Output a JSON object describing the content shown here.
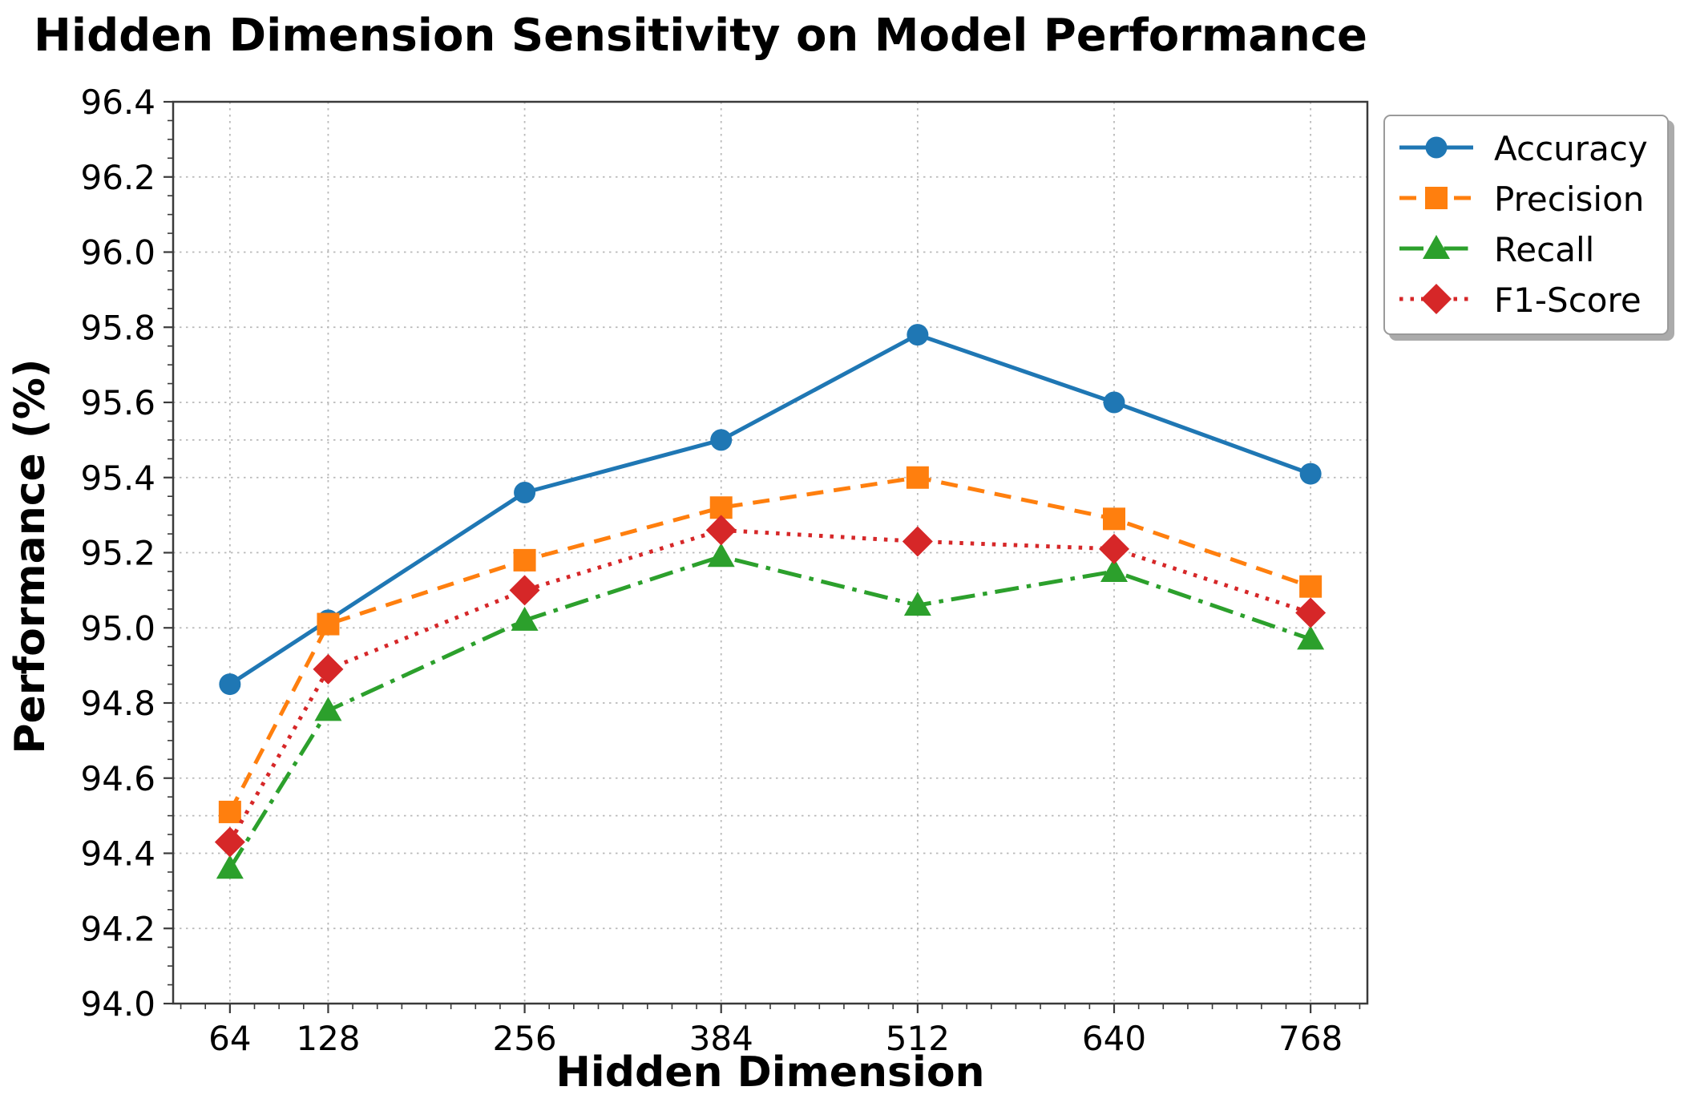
{
  "chart_data": {
    "type": "line",
    "title": "Hidden Dimension Sensitivity on Model Performance",
    "xlabel": "Hidden Dimension",
    "ylabel": "Performance (%)",
    "x": [
      64,
      128,
      256,
      384,
      512,
      640,
      768
    ],
    "series": [
      {
        "name": "Accuracy",
        "color": "#1f77b4",
        "linestyle": "solid",
        "marker": "circle",
        "values": [
          94.85,
          95.02,
          95.36,
          95.5,
          95.78,
          95.6,
          95.41
        ]
      },
      {
        "name": "Precision",
        "color": "#ff7f0e",
        "linestyle": "dashed",
        "marker": "square",
        "values": [
          94.51,
          95.01,
          95.18,
          95.32,
          95.4,
          95.29,
          95.11
        ]
      },
      {
        "name": "Recall",
        "color": "#2ca02c",
        "linestyle": "dashdot",
        "marker": "triangle",
        "values": [
          94.36,
          94.78,
          95.02,
          95.19,
          95.06,
          95.15,
          94.97
        ]
      },
      {
        "name": "F1-Score",
        "color": "#d62728",
        "linestyle": "dotted",
        "marker": "diamond",
        "values": [
          94.43,
          94.89,
          95.1,
          95.26,
          95.23,
          95.21,
          95.04
        ]
      }
    ],
    "xlim": [
      27,
      805
    ],
    "ylim": [
      94.0,
      96.4
    ],
    "x_ticks": [
      64,
      128,
      256,
      384,
      512,
      640,
      768
    ],
    "y_ticks": [
      94.0,
      94.2,
      94.4,
      94.6,
      94.8,
      95.0,
      95.2,
      95.4,
      95.6,
      95.8,
      96.0,
      96.2,
      96.4
    ],
    "y_minor_gridlines": [
      94.5,
      95.5
    ],
    "grid": true,
    "grid_linestyle": "dotted",
    "grid_color": "#b9b9b9",
    "spine_color": "#3a3a3a",
    "legend_position": "upper-right-outside",
    "legend_labels": [
      "Accuracy",
      "Precision",
      "Recall",
      "F1-Score"
    ]
  }
}
